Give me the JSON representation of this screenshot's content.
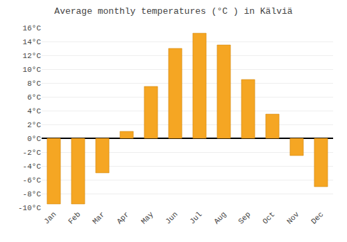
{
  "chart_data": {
    "type": "bar",
    "title": "Average monthly temperatures (°C ) in Kälviä",
    "categories": [
      "Jan",
      "Feb",
      "Mar",
      "Apr",
      "May",
      "Jun",
      "Jul",
      "Aug",
      "Sep",
      "Oct",
      "Nov",
      "Dec"
    ],
    "values": [
      -9.5,
      -9.5,
      -5.0,
      1.0,
      7.5,
      13.0,
      15.2,
      13.5,
      8.5,
      3.5,
      -2.5,
      -7.0
    ],
    "color": "#F5A623",
    "ylim": [
      -10,
      16
    ],
    "yticks": [
      {
        "value": -10,
        "label": "-10°C"
      },
      {
        "value": -8,
        "label": "-8°C"
      },
      {
        "value": -6,
        "label": "-6°C"
      },
      {
        "value": -4,
        "label": "-4°C"
      },
      {
        "value": -2,
        "label": "-2°C"
      },
      {
        "value": 0,
        "label": "0°C"
      },
      {
        "value": 2,
        "label": "2°C"
      },
      {
        "value": 4,
        "label": "4°C"
      },
      {
        "value": 6,
        "label": "6°C"
      },
      {
        "value": 8,
        "label": "8°C"
      },
      {
        "value": 10,
        "label": "10°C"
      },
      {
        "value": 12,
        "label": "12°C"
      },
      {
        "value": 14,
        "label": "14°C"
      },
      {
        "value": 16,
        "label": "16°C"
      }
    ],
    "grid": true
  }
}
